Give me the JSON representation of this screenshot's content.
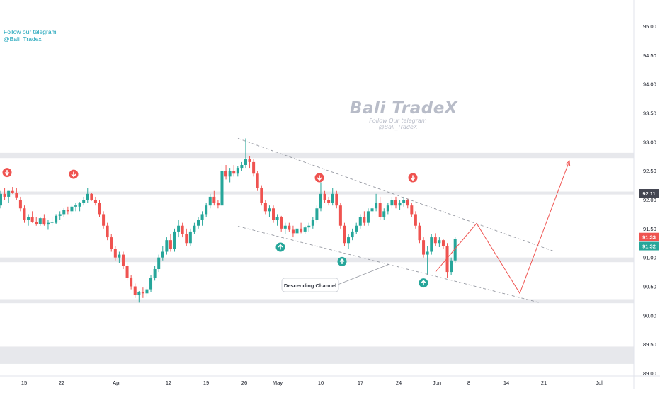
{
  "telegram": {
    "line1": "Follow our telegram",
    "line2": "@Bali_Tradex"
  },
  "watermark": {
    "title": "Bali TradeX",
    "line1": "Follow Our telegram",
    "line2": "@Bali_TradeX"
  },
  "annotation": {
    "label": "Descending Channel"
  },
  "colors": {
    "up": "#26a69a",
    "down": "#ef5350",
    "zone": "#e7e8ec",
    "trend": "#9598a1",
    "projection": "#ef5350",
    "tag_dark": "#434651",
    "tag_red": "#ef5350",
    "tag_green": "#26a69a"
  },
  "markers": {
    "sell": [
      {
        "date": "Mar 9",
        "price": 92.47
      },
      {
        "date": "Mar 22",
        "price": 92.44
      },
      {
        "date": "May 10",
        "price": 92.38
      },
      {
        "date": "May 27",
        "price": 92.38
      }
    ],
    "buy": [
      {
        "date": "May 5",
        "price": 91.18
      },
      {
        "date": "May 13",
        "price": 90.93
      },
      {
        "date": "May 31",
        "price": 90.56
      }
    ]
  },
  "chart_data": {
    "type": "candlestick",
    "symbol_note": "",
    "y_axis": {
      "ticks": [
        "95.00",
        "94.50",
        "94.00",
        "93.50",
        "93.00",
        "92.50",
        "92.00",
        "91.50",
        "91.00",
        "90.50",
        "90.00",
        "89.50",
        "89.00"
      ],
      "range": [
        88.95,
        95.4
      ]
    },
    "x_axis": {
      "ticks": [
        "15",
        "22",
        "Apr",
        "12",
        "19",
        "26",
        "May",
        "10",
        "17",
        "24",
        "Jun",
        "8",
        "14",
        "21",
        "Jul"
      ]
    },
    "price_tags": [
      {
        "label": "92.11",
        "value": 92.11,
        "style": "tag_dark"
      },
      {
        "label": "91.33",
        "value": 91.33,
        "style": "tag_red"
      },
      {
        "label": "91.32",
        "value": 91.32,
        "style": "tag_green"
      }
    ],
    "zones": [
      {
        "from": 92.72,
        "to": 92.81
      },
      {
        "from": 92.09,
        "to": 92.14
      },
      {
        "from": 90.92,
        "to": 91.0
      },
      {
        "from": 90.21,
        "to": 90.28
      },
      {
        "from": 89.16,
        "to": 89.46
      }
    ],
    "channel": {
      "upper": {
        "start": [
          "Apr 26",
          93.06
        ],
        "end": [
          "Jun 22",
          91.1
        ]
      },
      "lower": {
        "start": [
          "Apr 26",
          91.54
        ],
        "end": [
          "Jun 19",
          90.22
        ]
      }
    },
    "projection": [
      [
        "Jun 3",
        90.75
      ],
      [
        "Jun 9",
        91.59
      ],
      [
        "Jun 17",
        90.38
      ],
      [
        "Jun 26",
        92.67
      ]
    ],
    "candles": [
      [
        91.9,
        92.15,
        91.85,
        92.1
      ],
      [
        92.1,
        92.2,
        92.0,
        92.05
      ],
      [
        92.05,
        92.15,
        91.95,
        92.15
      ],
      [
        92.15,
        92.22,
        92.1,
        92.12
      ],
      [
        92.12,
        92.2,
        92.0,
        92.04
      ],
      [
        92.0,
        92.05,
        91.8,
        91.85
      ],
      [
        91.85,
        91.9,
        91.6,
        91.65
      ],
      [
        91.65,
        91.75,
        91.55,
        91.7
      ],
      [
        91.7,
        91.8,
        91.6,
        91.62
      ],
      [
        91.62,
        91.7,
        91.55,
        91.58
      ],
      [
        91.58,
        91.7,
        91.55,
        91.68
      ],
      [
        91.68,
        91.75,
        91.55,
        91.57
      ],
      [
        91.57,
        91.65,
        91.48,
        91.6
      ],
      [
        91.6,
        91.7,
        91.55,
        91.62
      ],
      [
        91.6,
        91.75,
        91.58,
        91.72
      ],
      [
        91.72,
        91.8,
        91.65,
        91.75
      ],
      [
        91.75,
        91.85,
        91.7,
        91.82
      ],
      [
        91.82,
        91.88,
        91.75,
        91.8
      ],
      [
        91.8,
        91.9,
        91.75,
        91.88
      ],
      [
        91.88,
        91.95,
        91.8,
        91.9
      ],
      [
        91.88,
        91.96,
        91.8,
        91.95
      ],
      [
        91.95,
        92.05,
        91.9,
        92.0
      ],
      [
        92.0,
        92.2,
        91.95,
        92.1
      ],
      [
        92.1,
        92.12,
        91.98,
        92.0
      ],
      [
        92.0,
        92.05,
        91.9,
        91.95
      ],
      [
        91.95,
        92.0,
        91.7,
        91.75
      ],
      [
        91.75,
        91.8,
        91.5,
        91.55
      ],
      [
        91.55,
        91.6,
        91.3,
        91.35
      ],
      [
        91.35,
        91.4,
        91.1,
        91.15
      ],
      [
        91.15,
        91.2,
        90.95,
        91.0
      ],
      [
        91.0,
        91.1,
        90.9,
        91.05
      ],
      [
        91.05,
        91.1,
        90.8,
        90.85
      ],
      [
        90.85,
        90.9,
        90.6,
        90.65
      ],
      [
        90.65,
        90.7,
        90.45,
        90.5
      ],
      [
        90.5,
        90.55,
        90.3,
        90.35
      ],
      [
        90.35,
        90.42,
        90.22,
        90.4
      ],
      [
        90.4,
        90.48,
        90.3,
        90.38
      ],
      [
        90.38,
        90.5,
        90.32,
        90.45
      ],
      [
        90.45,
        90.7,
        90.4,
        90.65
      ],
      [
        90.65,
        90.85,
        90.6,
        90.8
      ],
      [
        90.8,
        91.05,
        90.75,
        91.0
      ],
      [
        91.0,
        91.2,
        90.95,
        91.1
      ],
      [
        91.1,
        91.35,
        91.05,
        91.3
      ],
      [
        91.3,
        91.4,
        91.1,
        91.15
      ],
      [
        91.15,
        91.5,
        91.1,
        91.45
      ],
      [
        91.45,
        91.65,
        91.35,
        91.55
      ],
      [
        91.55,
        91.6,
        91.35,
        91.4
      ],
      [
        91.4,
        91.5,
        91.2,
        91.25
      ],
      [
        91.25,
        91.5,
        91.2,
        91.45
      ],
      [
        91.45,
        91.6,
        91.4,
        91.55
      ],
      [
        91.55,
        91.7,
        91.5,
        91.65
      ],
      [
        91.65,
        91.8,
        91.55,
        91.75
      ],
      [
        91.75,
        91.95,
        91.7,
        91.9
      ],
      [
        91.9,
        92.1,
        91.85,
        92.05
      ],
      [
        92.05,
        92.15,
        91.9,
        91.95
      ],
      [
        91.95,
        92.0,
        91.85,
        91.9
      ],
      [
        91.9,
        92.6,
        91.88,
        92.5
      ],
      [
        92.5,
        92.6,
        92.35,
        92.4
      ],
      [
        92.4,
        92.55,
        92.3,
        92.5
      ],
      [
        92.5,
        92.6,
        92.4,
        92.45
      ],
      [
        92.45,
        92.58,
        92.4,
        92.55
      ],
      [
        92.55,
        92.65,
        92.5,
        92.6
      ],
      [
        92.6,
        93.06,
        92.55,
        92.7
      ],
      [
        92.7,
        92.75,
        92.55,
        92.65
      ],
      [
        92.65,
        92.7,
        92.4,
        92.45
      ],
      [
        92.45,
        92.5,
        92.15,
        92.2
      ],
      [
        92.2,
        92.25,
        91.9,
        91.95
      ],
      [
        91.95,
        92.0,
        91.75,
        91.8
      ],
      [
        91.8,
        91.9,
        91.7,
        91.85
      ],
      [
        91.85,
        91.9,
        91.6,
        91.65
      ],
      [
        91.65,
        91.75,
        91.55,
        91.7
      ],
      [
        91.7,
        91.72,
        91.45,
        91.5
      ],
      [
        91.5,
        91.6,
        91.4,
        91.55
      ],
      [
        91.55,
        91.6,
        91.45,
        91.48
      ],
      [
        91.48,
        91.55,
        91.35,
        91.42
      ],
      [
        91.42,
        91.52,
        91.35,
        91.5
      ],
      [
        91.5,
        91.6,
        91.42,
        91.45
      ],
      [
        91.45,
        91.55,
        91.4,
        91.52
      ],
      [
        91.52,
        91.6,
        91.45,
        91.55
      ],
      [
        91.55,
        91.7,
        91.5,
        91.65
      ],
      [
        91.65,
        91.9,
        91.6,
        91.85
      ],
      [
        91.85,
        92.3,
        91.8,
        92.1
      ],
      [
        92.1,
        92.15,
        91.95,
        92.0
      ],
      [
        92.0,
        92.05,
        91.9,
        91.95
      ],
      [
        91.95,
        92.2,
        91.9,
        92.1
      ],
      [
        92.1,
        92.15,
        91.85,
        91.9
      ],
      [
        91.9,
        91.95,
        91.5,
        91.55
      ],
      [
        91.55,
        91.6,
        91.2,
        91.25
      ],
      [
        91.25,
        91.4,
        91.15,
        91.35
      ],
      [
        91.35,
        91.5,
        91.3,
        91.45
      ],
      [
        91.45,
        91.6,
        91.4,
        91.55
      ],
      [
        91.55,
        91.75,
        91.5,
        91.7
      ],
      [
        91.7,
        91.8,
        91.55,
        91.6
      ],
      [
        91.6,
        91.85,
        91.55,
        91.8
      ],
      [
        91.8,
        91.9,
        91.7,
        91.85
      ],
      [
        91.85,
        92.1,
        91.8,
        91.95
      ],
      [
        91.95,
        92.05,
        91.65,
        91.7
      ],
      [
        91.7,
        91.85,
        91.65,
        91.8
      ],
      [
        91.8,
        91.95,
        91.75,
        91.9
      ],
      [
        91.9,
        92.05,
        91.85,
        92.0
      ],
      [
        92.0,
        92.05,
        91.85,
        91.9
      ],
      [
        91.9,
        92.0,
        91.82,
        91.95
      ],
      [
        91.95,
        92.05,
        91.88,
        92.0
      ],
      [
        92.0,
        92.02,
        91.85,
        91.9
      ],
      [
        91.9,
        91.95,
        91.7,
        91.75
      ],
      [
        91.75,
        91.8,
        91.5,
        91.55
      ],
      [
        91.55,
        91.6,
        91.25,
        91.3
      ],
      [
        91.3,
        91.35,
        91.0,
        91.05
      ],
      [
        91.05,
        91.2,
        90.7,
        91.1
      ],
      [
        91.1,
        91.4,
        91.05,
        91.35
      ],
      [
        91.35,
        91.42,
        91.2,
        91.25
      ],
      [
        91.25,
        91.35,
        91.18,
        91.3
      ],
      [
        91.3,
        91.32,
        91.15,
        91.2
      ],
      [
        91.2,
        91.25,
        90.65,
        90.75
      ],
      [
        90.75,
        91.0,
        90.7,
        90.95
      ],
      [
        90.95,
        91.35,
        90.9,
        91.32
      ]
    ]
  }
}
